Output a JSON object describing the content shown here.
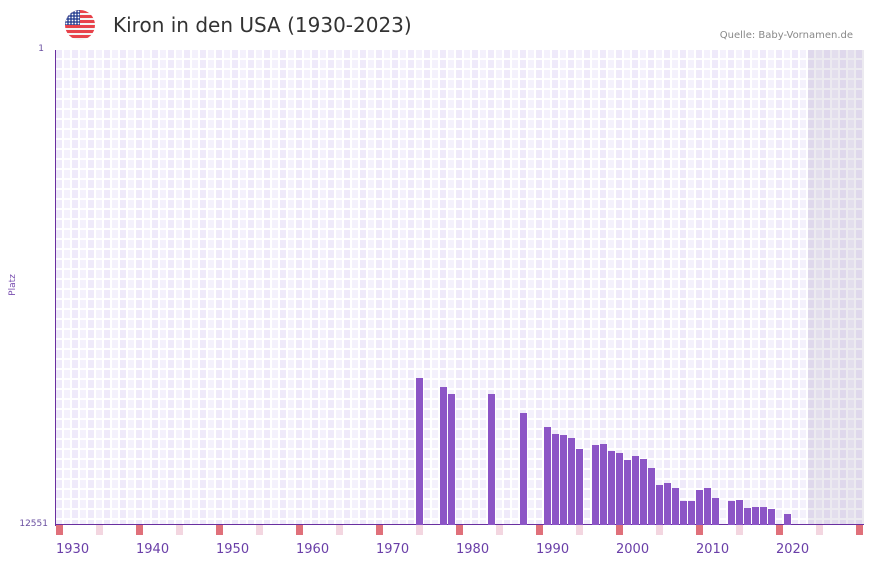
{
  "header": {
    "flag_icon": "us-flag-icon",
    "title": "Kiron in den USA (1930-2023)",
    "source": "Quelle: Baby-Vornamen.de"
  },
  "axis": {
    "ylabel": "Platz",
    "y_top": "1",
    "y_bottom": "12551",
    "x_labels": [
      "1930",
      "1940",
      "1950",
      "1960",
      "1970",
      "1980",
      "1990",
      "2000",
      "2010",
      "2020"
    ]
  },
  "colors": {
    "bar": "#8c55c6",
    "axis": "#6a2fa0",
    "decade_marker": "#e0707a",
    "half_decade_marker": "#f3d6e0"
  },
  "chart_data": {
    "type": "bar",
    "title": "Kiron in den USA (1930-2023)",
    "xlabel": "",
    "ylabel": "Platz",
    "y_inverted": true,
    "ylim": [
      12551,
      1
    ],
    "xlim": [
      1930,
      2030
    ],
    "grid": true,
    "legend": null,
    "categories": [
      1975,
      1978,
      1979,
      1984,
      1988,
      1991,
      1992,
      1993,
      1994,
      1995,
      1997,
      1998,
      1999,
      2000,
      2001,
      2002,
      2003,
      2004,
      2005,
      2006,
      2007,
      2008,
      2009,
      2010,
      2011,
      2012,
      2014,
      2015,
      2016,
      2017,
      2018,
      2019,
      2021
    ],
    "values": [
      8668,
      8905,
      9090,
      9090,
      9592,
      9961,
      10146,
      10173,
      10252,
      10543,
      10437,
      10411,
      10596,
      10648,
      10833,
      10728,
      10807,
      11045,
      11494,
      11441,
      11573,
      11917,
      11917,
      11626,
      11573,
      11838,
      11917,
      11891,
      12102,
      12076,
      12076,
      12129,
      12261
    ]
  }
}
